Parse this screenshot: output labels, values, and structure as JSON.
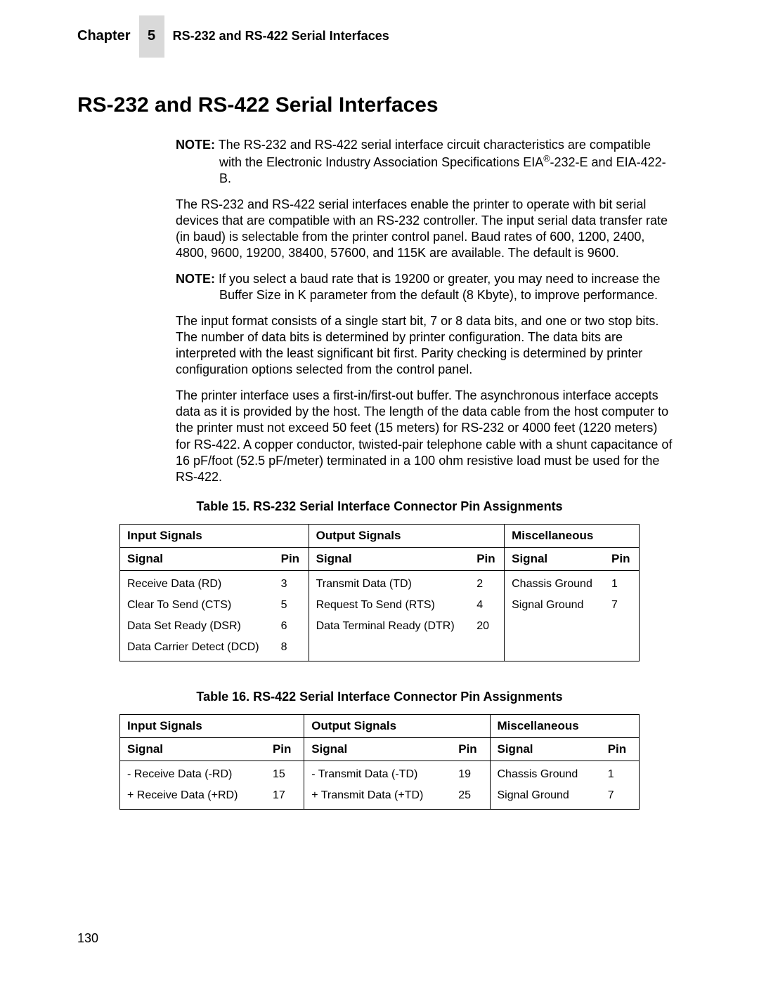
{
  "header": {
    "chapter_label": "Chapter",
    "chapter_number": "5",
    "chapter_title": "RS-232 and RS-422 Serial Interfaces"
  },
  "heading": "RS-232 and RS-422 Serial Interfaces",
  "note_label": "NOTE:",
  "note1_text": "The RS-232 and RS-422 serial interface circuit characteristics are compatible with the Electronic Industry Association Specifications EIA®-232-E and EIA-422-B.",
  "para1": "The RS-232 and RS-422 serial interfaces enable the printer to operate with bit serial devices that are compatible with an RS-232 controller. The input serial data transfer rate (in baud) is selectable from the printer control panel. Baud rates of 600, 1200, 2400, 4800, 9600, 19200, 38400, 57600, and 115K are available. The default is 9600.",
  "note2_text": "If you select a baud rate that is 19200 or greater, you may need to increase the Buffer Size in K parameter from the default (8 Kbyte), to improve performance.",
  "para2": "The input format consists of a single start bit, 7 or 8 data bits, and one or two stop bits. The number of data bits is determined by printer configuration. The data bits are interpreted with the least significant bit first. Parity checking is determined by printer configuration options selected from the control panel.",
  "para3": "The printer interface uses a first-in/first-out buffer. The asynchronous interface accepts data as it is provided by the host. The length of the data cable from the host computer to the printer must not exceed 50 feet (15 meters) for RS-232 or 4000 feet (1220 meters) for RS-422. A copper conductor, twisted-pair telephone cable with a shunt capacitance of 16 pF/foot (52.5 pF/meter) terminated in a 100 ohm resistive load must be used for the RS-422.",
  "table15": {
    "caption": "Table 15. RS-232 Serial Interface Connector Pin Assignments",
    "group_headers": [
      "Input Signals",
      "Output Signals",
      "Miscellaneous"
    ],
    "col_headers": [
      "Signal",
      "Pin",
      "Signal",
      "Pin",
      "Signal",
      "Pin"
    ],
    "rows": [
      [
        "Receive Data (RD)",
        "3",
        "Transmit Data (TD)",
        "2",
        "Chassis Ground",
        "1"
      ],
      [
        "Clear To Send (CTS)",
        "5",
        "Request To Send (RTS)",
        "4",
        "Signal Ground",
        "7"
      ],
      [
        "Data Set Ready (DSR)",
        "6",
        "Data Terminal Ready (DTR)",
        "20",
        "",
        ""
      ],
      [
        "Data Carrier Detect (DCD)",
        "8",
        "",
        "",
        "",
        ""
      ]
    ]
  },
  "table16": {
    "caption": "Table 16. RS-422 Serial Interface Connector Pin Assignments",
    "group_headers": [
      "Input Signals",
      "Output Signals",
      "Miscellaneous"
    ],
    "col_headers": [
      "Signal",
      "Pin",
      "Signal",
      "Pin",
      "Signal",
      "Pin"
    ],
    "rows": [
      [
        "- Receive Data (-RD)",
        "15",
        "- Transmit Data (-TD)",
        "19",
        "Chassis Ground",
        "1"
      ],
      [
        "+ Receive Data (+RD)",
        "17",
        "+ Transmit Data (+TD)",
        "25",
        "Signal Ground",
        "7"
      ]
    ]
  },
  "page_number": "130"
}
